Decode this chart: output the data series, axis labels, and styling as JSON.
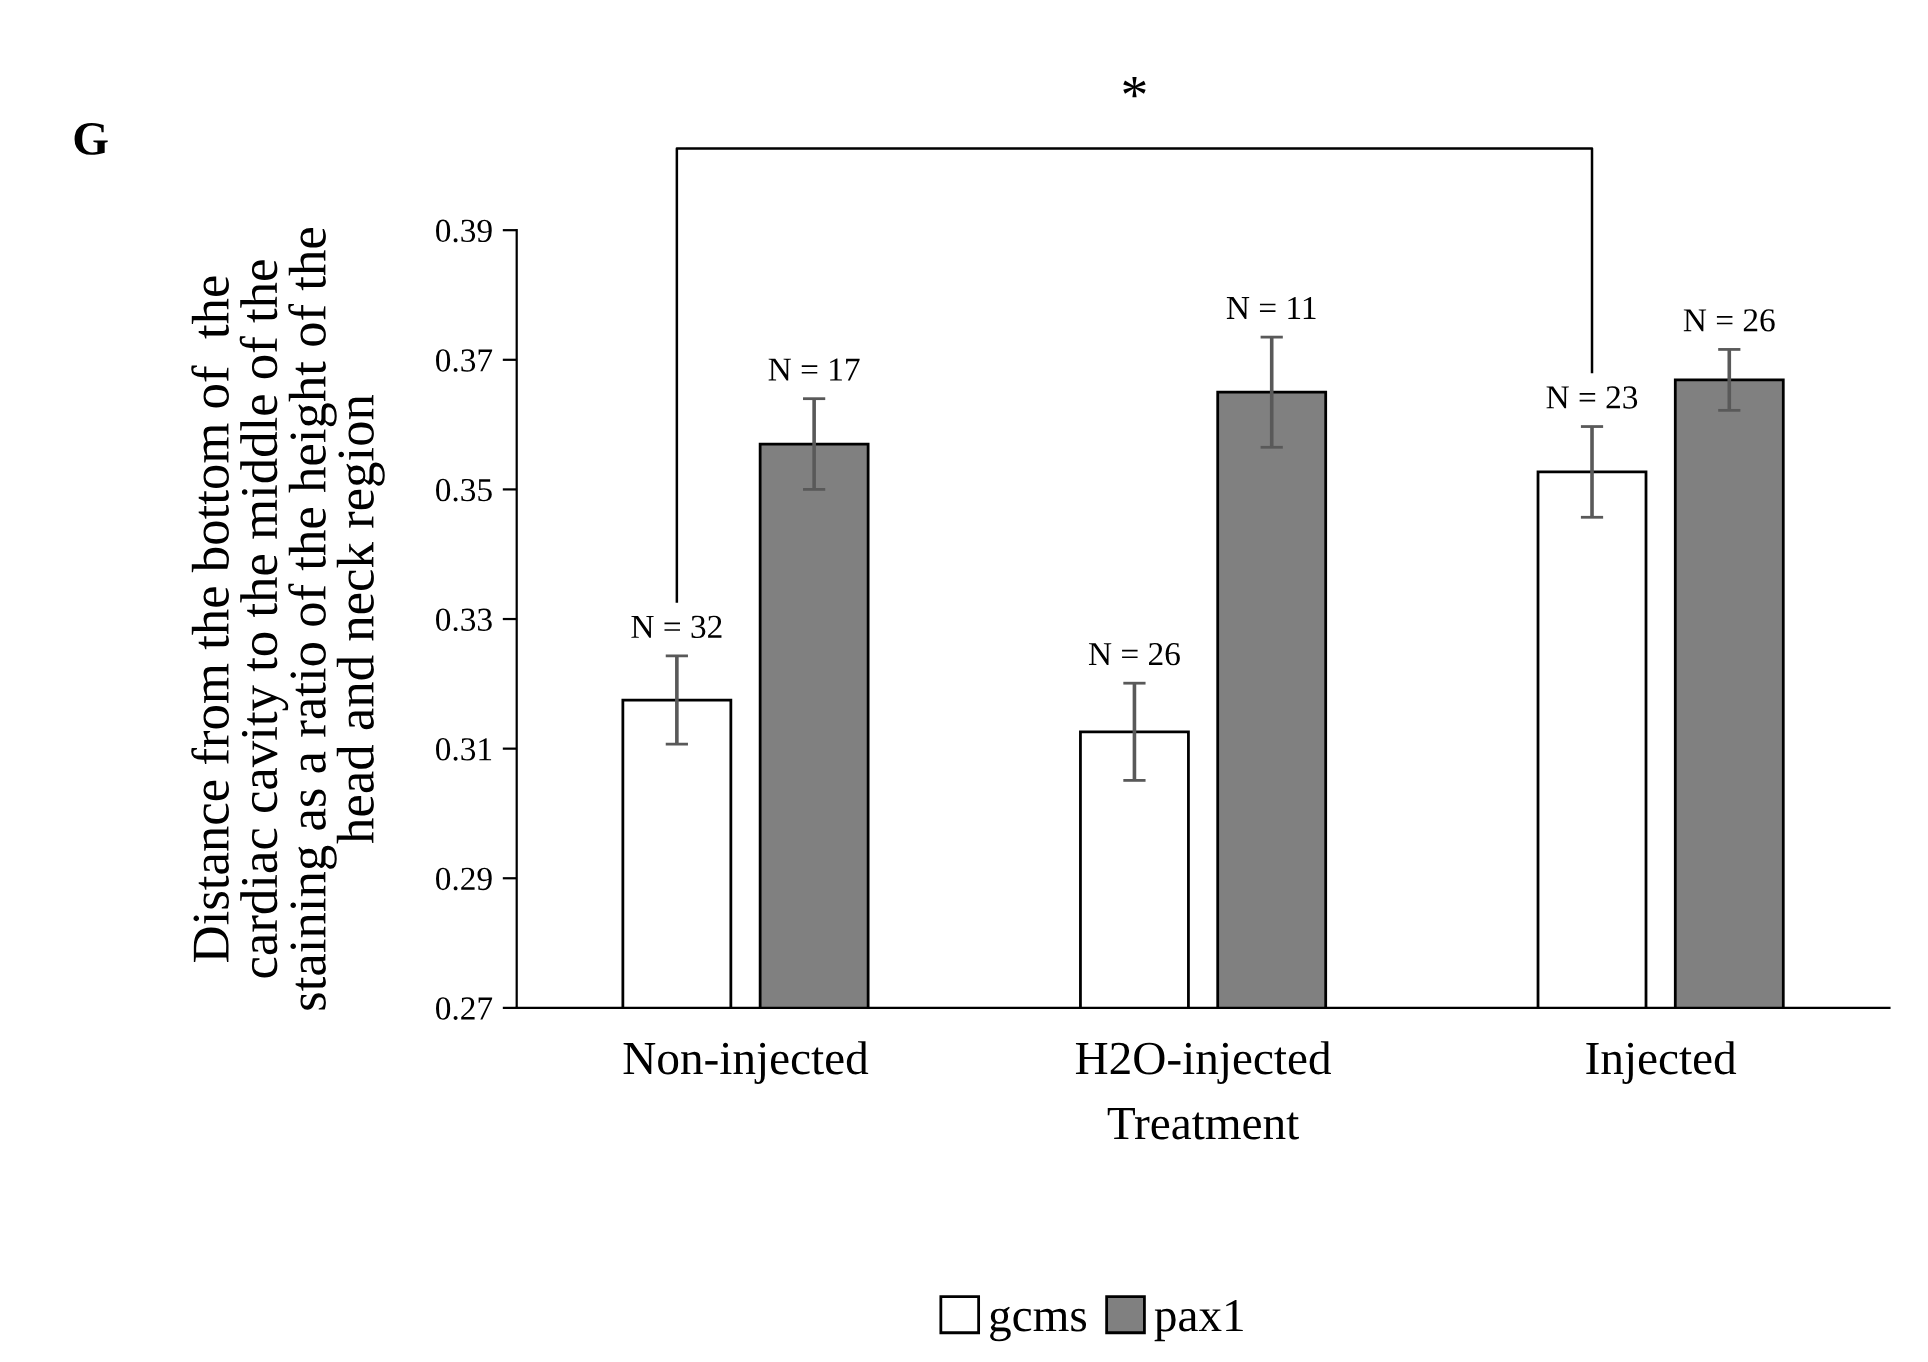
{
  "chart_data": {
    "type": "bar",
    "xlabel": "Treatment",
    "ylabel": "Distance from the bottom of  the\ncardiac cavity to the middle of the\nstaining as a ratio of the height of the\nhead and neck region",
    "categories": [
      "Non-injected",
      "H2O-injected",
      "Injected"
    ],
    "series": [
      {
        "name": "gcms",
        "color": "#ffffff",
        "values": [
          0.3175,
          0.3126,
          0.3527
        ],
        "errors": [
          0.0068,
          0.0075,
          0.007
        ]
      },
      {
        "name": "pax1",
        "color": "#808080",
        "values": [
          0.357,
          0.365,
          0.3669
        ],
        "errors": [
          0.007,
          0.0085,
          0.0047
        ]
      }
    ],
    "ylim": [
      0.27,
      0.39
    ],
    "yticks": [
      {
        "value": 0.27,
        "label": "0.27"
      },
      {
        "value": 0.29,
        "label": "0.29"
      },
      {
        "value": 0.31,
        "label": "0.31"
      },
      {
        "value": 0.33,
        "label": "0.33"
      },
      {
        "value": 0.35,
        "label": "0.35"
      },
      {
        "value": 0.37,
        "label": "0.37"
      },
      {
        "value": 0.39,
        "label": "0.39"
      }
    ],
    "annotations": [
      "G",
      "*",
      "N = 32",
      "N = 17",
      "N = 26",
      "N = 11",
      "N = 23",
      "N = 26"
    ],
    "grid": false,
    "legend": "bottom"
  }
}
